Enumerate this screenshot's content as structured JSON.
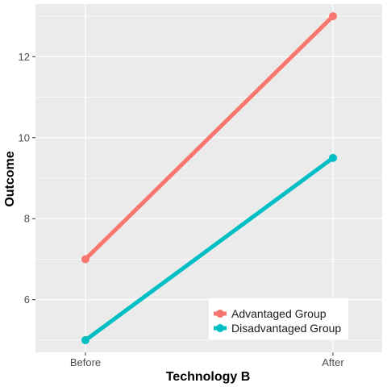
{
  "chart_data": {
    "type": "line",
    "categories": [
      "Before",
      "After"
    ],
    "series": [
      {
        "name": "Advantaged Group",
        "values": [
          7,
          13
        ],
        "color": "#F8766D"
      },
      {
        "name": "Disadvantaged Group",
        "values": [
          5,
          9.5
        ],
        "color": "#00BFC4"
      }
    ],
    "xlabel": "Technology B",
    "ylabel": "Outcome",
    "ylim": [
      4.7,
      13.3
    ],
    "yticks": [
      6,
      8,
      10,
      12
    ],
    "y_minor": [
      5,
      7,
      9,
      11,
      13
    ],
    "grid": true,
    "legend_position": "bottom-right",
    "panel_background": "#EBEBEB",
    "grid_color": "#FFFFFF"
  }
}
